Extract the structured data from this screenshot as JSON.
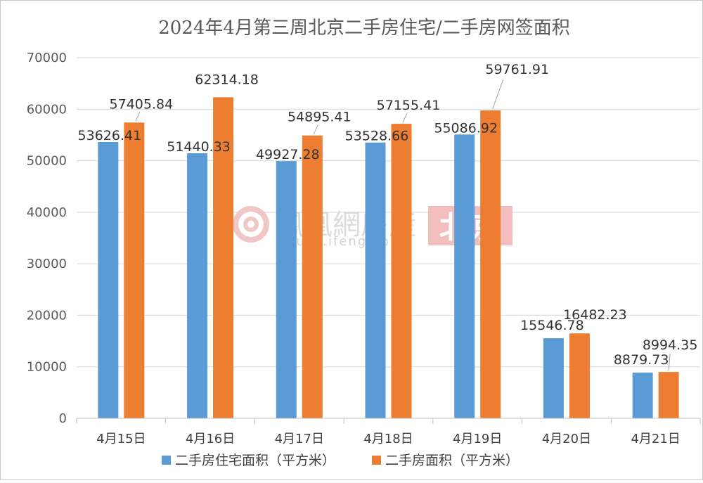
{
  "chart_data": {
    "type": "bar",
    "title": "2024年4月第三周北京二手房住宅/二手房网签面积",
    "categories": [
      "4月15日",
      "4月16日",
      "4月17日",
      "4月18日",
      "4月19日",
      "4月20日",
      "4月21日"
    ],
    "series": [
      {
        "name": "二手房住宅面积（平方米）",
        "color": "#5b9bd5",
        "values": [
          53626.41,
          51440.33,
          49927.28,
          53528.66,
          55086.92,
          15546.78,
          8879.73
        ],
        "labels": [
          "53626.41",
          "51440.33",
          "49927.28",
          "53528.66",
          "55086.92",
          "15546.78",
          "8879.73"
        ]
      },
      {
        "name": "二手房面积（平方米）",
        "color": "#ed7d31",
        "values": [
          57405.84,
          62314.18,
          54895.41,
          57155.41,
          59761.91,
          16482.23,
          8994.35
        ],
        "labels": [
          "57405.84",
          "62314.18",
          "54895.41",
          "57155.41",
          "59761.91",
          "16482.23",
          "8994.35"
        ]
      }
    ],
    "ylim": [
      0,
      70000
    ],
    "yticks": [
      0,
      10000,
      20000,
      30000,
      40000,
      50000,
      60000,
      70000
    ],
    "grid": true,
    "legend": "bottom"
  },
  "watermark": {
    "brand": "鳳凰網房産",
    "site": "house.ifeng.com",
    "city": "北京",
    "logo_icon": "ifeng-phoenix-icon",
    "color": "#e8b7b7"
  }
}
